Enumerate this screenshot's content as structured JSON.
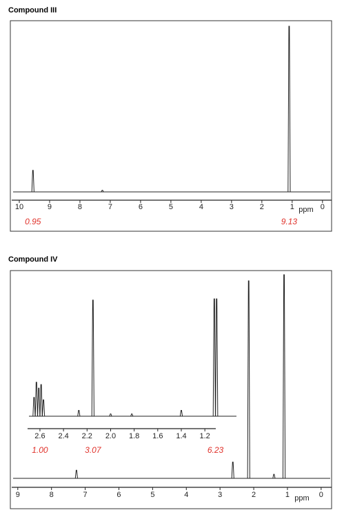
{
  "chart_data": [
    {
      "type": "nmr",
      "title": "Compound III",
      "xlabel": "ppm",
      "xlim": [
        10.25,
        -0.3
      ],
      "xticks": [
        10,
        9,
        8,
        7,
        6,
        5,
        4,
        3,
        2,
        1,
        0
      ],
      "x": [
        9.55,
        7.26,
        1.1
      ],
      "values": [
        13,
        1,
        100
      ],
      "annotations": [
        {
          "text": "0.95",
          "x": 9.55
        },
        {
          "text": "9.13",
          "x": 1.1
        }
      ]
    },
    {
      "type": "nmr",
      "title": "Compound IV",
      "xlabel": "ppm",
      "xlim": [
        9.18,
        -0.31
      ],
      "xticks": [
        9,
        8,
        7,
        6,
        5,
        4,
        3,
        2,
        1,
        0
      ],
      "x": [
        7.26,
        2.62,
        2.15,
        1.4,
        1.1
      ],
      "values": [
        4,
        8,
        97,
        2,
        100
      ],
      "inset": {
        "xlim": [
          2.705,
          0.92
        ],
        "xticks": [
          2.6,
          2.4,
          2.2,
          {
            "value": 2,
            "label": "2.0"
          },
          1.8,
          1.6,
          1.4,
          1.2
        ],
        "x": [
          2.65,
          2.63,
          2.61,
          2.59,
          2.57,
          2.27,
          2.15,
          2.0,
          1.82,
          1.4,
          1.12,
          1.1
        ],
        "values": [
          16,
          29,
          24,
          27,
          14,
          5,
          99,
          2,
          2,
          5,
          100,
          100
        ],
        "annotations": [
          {
            "text": "1.00",
            "x": 2.6
          },
          {
            "text": "3.07",
            "x": 2.15
          },
          {
            "text": "6.23",
            "x": 1.11
          }
        ]
      }
    }
  ]
}
